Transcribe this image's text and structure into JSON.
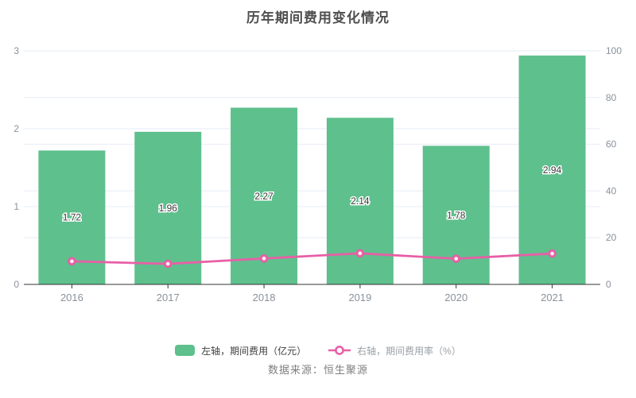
{
  "title": "历年期间费用变化情况",
  "footer": {
    "source": "数据来源：恒生聚源"
  },
  "colors": {
    "bar": "#5ec08d",
    "line": "#e85fa6",
    "grid": "#e6ebf4",
    "axis_line": "#333333",
    "tick_text": "#8a929c",
    "bar_label": "#3b3b3b",
    "title_text": "#4f4f4f",
    "background": "#ffffff"
  },
  "chart_data": {
    "type": "bar",
    "combo": "bar+line dual axis",
    "title": "历年期间费用变化情况",
    "categories": [
      "2016",
      "2017",
      "2018",
      "2019",
      "2020",
      "2021"
    ],
    "series": [
      {
        "name": "左轴，期间费用（亿元）",
        "type": "bar",
        "axis": "left",
        "color": "#5ec08d",
        "values": [
          1.72,
          1.96,
          2.27,
          2.14,
          1.78,
          2.94
        ],
        "labels": [
          "1.72",
          "1.96",
          "2.27",
          "2.14",
          "1.78",
          "2.94"
        ]
      },
      {
        "name": "右轴，期间费用率（%）",
        "type": "line",
        "axis": "right",
        "color": "#e85fa6",
        "values": [
          9.9,
          8.8,
          11.1,
          13.3,
          11.0,
          13.2
        ]
      }
    ],
    "left_axis": {
      "min": 0,
      "max": 3,
      "ticks": [
        0,
        1,
        2,
        3
      ]
    },
    "right_axis": {
      "min": 0,
      "max": 100,
      "ticks": [
        0,
        20,
        40,
        60,
        80,
        100
      ]
    },
    "grid": true,
    "legend_position": "bottom",
    "xlabel": "",
    "ylabel": ""
  }
}
